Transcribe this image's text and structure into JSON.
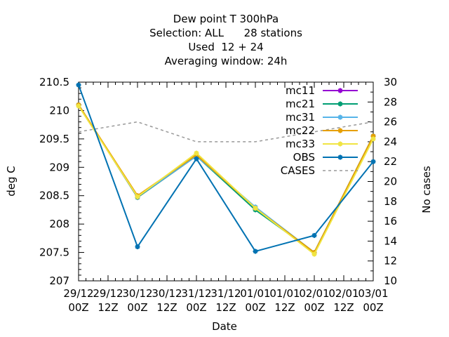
{
  "chart_data": {
    "type": "line",
    "title_lines": [
      "Dew point T 300hPa",
      "Selection: ALL      28 stations",
      "Used  12 + 24",
      "Averaging window: 24h"
    ],
    "xlabel": "Date",
    "ylabel": "deg C",
    "y2label": "No cases",
    "ylim": [
      207,
      210.5
    ],
    "y2lim": [
      10,
      30
    ],
    "yticks": [
      "207",
      "207.5",
      "208",
      "208.5",
      "209",
      "209.5",
      "210",
      "210.5"
    ],
    "y2ticks": [
      "10",
      "12",
      "14",
      "16",
      "18",
      "20",
      "22",
      "24",
      "26",
      "28",
      "30"
    ],
    "xticks": [
      {
        "top": "29/12",
        "bottom": "00Z"
      },
      {
        "top": "29/12",
        "bottom": "12Z"
      },
      {
        "top": "30/12",
        "bottom": "00Z"
      },
      {
        "top": "30/12",
        "bottom": "12Z"
      },
      {
        "top": "31/12",
        "bottom": "00Z"
      },
      {
        "top": "31/12",
        "bottom": "12Z"
      },
      {
        "top": "01/01",
        "bottom": "00Z"
      },
      {
        "top": "01/01",
        "bottom": "12Z"
      },
      {
        "top": "02/01",
        "bottom": "00Z"
      },
      {
        "top": "02/01",
        "bottom": "12Z"
      },
      {
        "top": "03/01",
        "bottom": "00Z"
      }
    ],
    "x_index": [
      0,
      2,
      4,
      6,
      8,
      10
    ],
    "legend_position": "top-right",
    "grid": false,
    "series": [
      {
        "name": "mc11",
        "color": "#9400d3",
        "marker": "cross",
        "axis": "y",
        "values": [
          210.1,
          208.47,
          209.2,
          208.27,
          207.5,
          209.55
        ]
      },
      {
        "name": "mc21",
        "color": "#009e73",
        "marker": "cross",
        "axis": "y",
        "values": [
          210.1,
          208.47,
          209.2,
          208.25,
          207.5,
          209.55
        ]
      },
      {
        "name": "mc31",
        "color": "#56b4e9",
        "marker": "cross",
        "axis": "y",
        "values": [
          210.1,
          208.48,
          209.2,
          208.3,
          207.5,
          209.55
        ]
      },
      {
        "name": "mc22",
        "color": "#e69f00",
        "marker": "cross",
        "axis": "y",
        "values": [
          210.1,
          208.5,
          209.22,
          208.28,
          207.5,
          209.55
        ]
      },
      {
        "name": "mc33",
        "color": "#f0e442",
        "marker": "cross",
        "axis": "y",
        "values": [
          210.08,
          208.48,
          209.25,
          208.28,
          207.47,
          209.5
        ]
      },
      {
        "name": "OBS",
        "color": "#0072b2",
        "marker": "cross",
        "axis": "y",
        "values": [
          210.45,
          207.6,
          209.15,
          207.52,
          207.8,
          209.1
        ]
      },
      {
        "name": "CASES",
        "color": "#999999",
        "marker": "none",
        "dashed": true,
        "axis": "y2",
        "values": [
          25,
          26,
          24,
          24,
          25,
          26
        ]
      }
    ]
  }
}
